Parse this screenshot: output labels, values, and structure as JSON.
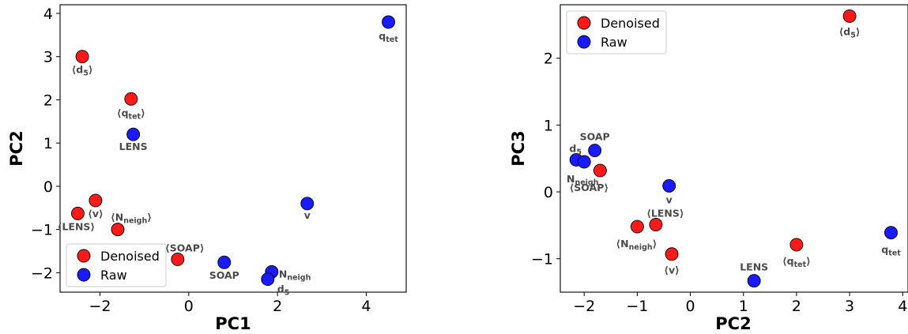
{
  "chart_data": [
    {
      "type": "scatter",
      "xlabel": "PC1",
      "ylabel": "PC2",
      "xlim": [
        -2.9,
        4.9
      ],
      "ylim": [
        -2.45,
        4.2
      ],
      "xticks": [
        -2,
        0,
        2,
        4
      ],
      "yticks": [
        -2,
        -1,
        0,
        1,
        2,
        3,
        4
      ],
      "tick_labels_x": [
        "−2",
        "0",
        "2",
        "4"
      ],
      "tick_labels_y": [
        "−2",
        "−1",
        "0",
        "1",
        "2",
        "3",
        "4"
      ],
      "legend": {
        "location": "lower-left",
        "entries": [
          "Denoised",
          "Raw"
        ]
      },
      "series": [
        {
          "name": "Denoised",
          "color": "#ff1a1a",
          "points": [
            {
              "label": "⟨d",
              "sub": "5",
              "close": "⟩",
              "x": -2.4,
              "y": 3.0
            },
            {
              "label": "⟨q",
              "sub": "tet",
              "close": "⟩",
              "x": -1.3,
              "y": 2.02
            },
            {
              "label": "⟨v⟩",
              "sub": "",
              "close": "",
              "x": -2.1,
              "y": -0.33
            },
            {
              "label": "⟨LENS⟩",
              "sub": "",
              "close": "",
              "x": -2.5,
              "y": -0.63
            },
            {
              "label": "⟨N",
              "sub": "neigh",
              "close": "⟩",
              "x": -1.6,
              "y": -1.0
            },
            {
              "label": "⟨SOAP⟩",
              "sub": "",
              "close": "",
              "x": -0.25,
              "y": -1.69
            }
          ]
        },
        {
          "name": "Raw",
          "color": "#1a1aff",
          "points": [
            {
              "label": "q",
              "sub": "tet",
              "close": "",
              "x": 4.5,
              "y": 3.8
            },
            {
              "label": "LENS",
              "sub": "",
              "close": "",
              "x": -1.25,
              "y": 1.2
            },
            {
              "label": "v",
              "sub": "",
              "close": "",
              "x": 2.67,
              "y": -0.4
            },
            {
              "label": "SOAP",
              "sub": "",
              "close": "",
              "x": 0.8,
              "y": -1.76
            },
            {
              "label": "N",
              "sub": "neigh",
              "close": "",
              "x": 1.87,
              "y": -1.98
            },
            {
              "label": "d",
              "sub": "5",
              "close": "",
              "x": 1.78,
              "y": -2.15
            }
          ]
        }
      ]
    },
    {
      "type": "scatter",
      "xlabel": "PC2",
      "ylabel": "PC3",
      "xlim": [
        -2.45,
        4.1
      ],
      "ylim": [
        -1.5,
        2.8
      ],
      "xticks": [
        -2,
        -1,
        0,
        1,
        2,
        3,
        4
      ],
      "yticks": [
        -1,
        0,
        1,
        2
      ],
      "tick_labels_x": [
        "−2",
        "−1",
        "0",
        "1",
        "2",
        "3",
        "4"
      ],
      "tick_labels_y": [
        "−1",
        "0",
        "1",
        "2"
      ],
      "legend": {
        "location": "upper-left",
        "entries": [
          "Denoised",
          "Raw"
        ]
      },
      "series": [
        {
          "name": "Denoised",
          "color": "#ff1a1a",
          "points": [
            {
              "label": "⟨d",
              "sub": "5",
              "close": "⟩",
              "x": 3.0,
              "y": 2.63
            },
            {
              "label": "⟨SOAP⟩",
              "sub": "",
              "close": "",
              "x": -1.7,
              "y": 0.32
            },
            {
              "label": "⟨N",
              "sub": "neigh",
              "close": "⟩",
              "x": -1.0,
              "y": -0.52
            },
            {
              "label": "⟨LENS⟩",
              "sub": "",
              "close": "",
              "x": -0.65,
              "y": -0.49
            },
            {
              "label": "⟨v⟩",
              "sub": "",
              "close": "",
              "x": -0.35,
              "y": -0.93
            },
            {
              "label": "⟨q",
              "sub": "tet",
              "close": "⟩",
              "x": 2.0,
              "y": -0.79
            }
          ]
        },
        {
          "name": "Raw",
          "color": "#1a1aff",
          "points": [
            {
              "label": "SOAP",
              "sub": "",
              "close": "",
              "x": -1.8,
              "y": 0.62
            },
            {
              "label": "d",
              "sub": "5",
              "close": "",
              "x": -2.15,
              "y": 0.48
            },
            {
              "label": "N",
              "sub": "neigh",
              "close": "",
              "x": -2.0,
              "y": 0.45
            },
            {
              "label": "v",
              "sub": "",
              "close": "",
              "x": -0.4,
              "y": 0.09
            },
            {
              "label": "LENS",
              "sub": "",
              "close": "",
              "x": 1.2,
              "y": -1.33
            },
            {
              "label": "q",
              "sub": "tet",
              "close": "",
              "x": 3.78,
              "y": -0.61
            }
          ]
        }
      ]
    }
  ]
}
